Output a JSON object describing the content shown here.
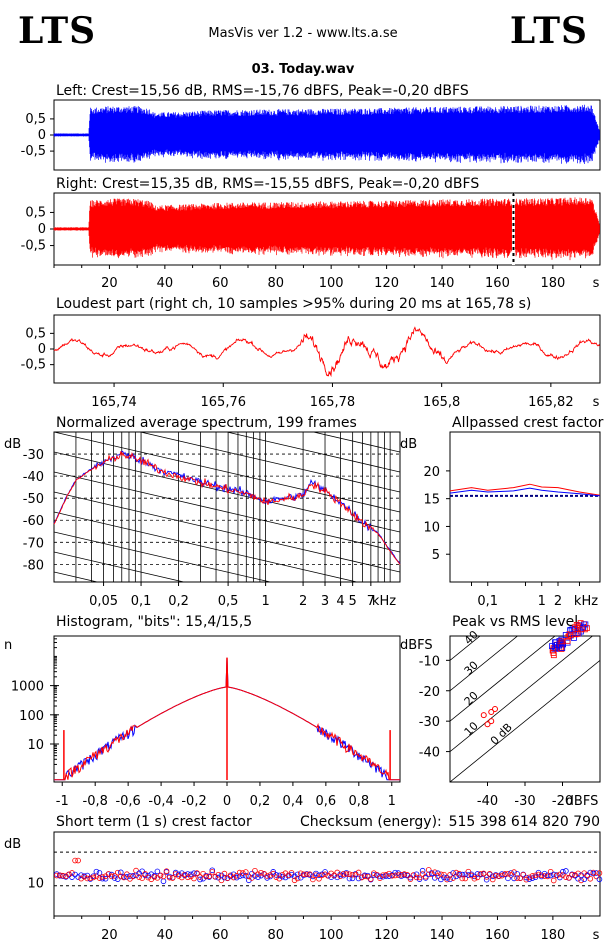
{
  "header": {
    "logo_left": "LTS",
    "logo_right": "LTS",
    "app_title": "MasVis ver 1.2 - www.lts.a.se",
    "file_title": "03. Today.wav"
  },
  "colors": {
    "left": "#0000ff",
    "right": "#ff0000",
    "grid": "#000000"
  },
  "chart_data": [
    {
      "id": "left",
      "type": "line",
      "title": "Left: Crest=15,56 dB, RMS=-15,76 dBFS, Peak=-0,20 dBFS",
      "yticks": [
        "0,5",
        "0",
        "-0,5"
      ],
      "ylim": [
        -1,
        1
      ],
      "xlim": [
        0,
        197
      ],
      "silence_end": 12.5,
      "envelope": [
        [
          0,
          0.05
        ],
        [
          12.5,
          0.05
        ],
        [
          13,
          0.85
        ],
        [
          20,
          0.9
        ],
        [
          30,
          0.9
        ],
        [
          35,
          0.82
        ],
        [
          36,
          0.7
        ],
        [
          45,
          0.72
        ],
        [
          60,
          0.78
        ],
        [
          80,
          0.8
        ],
        [
          100,
          0.82
        ],
        [
          120,
          0.84
        ],
        [
          140,
          0.88
        ],
        [
          160,
          0.9
        ],
        [
          180,
          0.92
        ],
        [
          194,
          0.95
        ],
        [
          197,
          0.1
        ]
      ]
    },
    {
      "id": "right",
      "type": "line",
      "title": "Right: Crest=15,35 dB, RMS=-15,55 dBFS, Peak=-0,20 dBFS",
      "yticks": [
        "0,5",
        "0",
        "-0,5"
      ],
      "xticks": [
        "20",
        "40",
        "60",
        "80",
        "100",
        "120",
        "140",
        "160",
        "180",
        "s"
      ],
      "xtick_values": [
        20,
        40,
        60,
        80,
        100,
        120,
        140,
        160,
        180
      ],
      "xlim": [
        0,
        197
      ],
      "marker": 165.78
    },
    {
      "id": "loudest",
      "type": "line",
      "title": "Loudest part (right ch, 10 samples >95% during 20 ms at 165,78 s)",
      "yticks": [
        "0,5",
        "0",
        "-0,5"
      ],
      "xticks": [
        "165,74",
        "165,76",
        "165,78",
        "165,8",
        "165,82",
        "s"
      ],
      "xtick_values": [
        165.74,
        165.76,
        165.78,
        165.8,
        165.82
      ],
      "xlim": [
        165.729,
        165.829
      ]
    },
    {
      "id": "spectrum",
      "type": "line",
      "title": "Normalized average spectrum, 199 frames",
      "ylabel": "dB",
      "yticks": [
        "-30",
        "-40",
        "-50",
        "-60",
        "-70",
        "-80"
      ],
      "ytick_values": [
        -30,
        -40,
        -50,
        -60,
        -70,
        -80
      ],
      "ylim": [
        -88,
        -20
      ],
      "xticks": [
        "0,05",
        "0,1",
        "0,2",
        "0,5",
        "1",
        "2",
        "3",
        "4",
        "5",
        "7",
        "kHz"
      ],
      "xtick_values": [
        0.05,
        0.1,
        0.2,
        0.5,
        1,
        2,
        3,
        4,
        5,
        7
      ],
      "xlim": [
        0.02,
        12
      ],
      "series": [
        {
          "color": "#ff0000",
          "points": [
            [
              0.02,
              -62
            ],
            [
              0.025,
              -50
            ],
            [
              0.03,
              -42
            ],
            [
              0.04,
              -37
            ],
            [
              0.05,
              -34
            ],
            [
              0.07,
              -30
            ],
            [
              0.1,
              -33
            ],
            [
              0.15,
              -38
            ],
            [
              0.2,
              -40
            ],
            [
              0.3,
              -43
            ],
            [
              0.5,
              -46
            ],
            [
              0.8,
              -49
            ],
            [
              1,
              -52
            ],
            [
              1.5,
              -50
            ],
            [
              2,
              -49
            ],
            [
              2.3,
              -43
            ],
            [
              3,
              -47
            ],
            [
              4,
              -52
            ],
            [
              5,
              -57
            ],
            [
              6,
              -61
            ],
            [
              8,
              -66
            ],
            [
              10,
              -74
            ],
            [
              12,
              -80
            ]
          ]
        }
      ]
    },
    {
      "id": "allpass",
      "type": "line",
      "title": "Allpassed crest factor",
      "ylabel": "dB",
      "yticks": [
        "20",
        "15",
        "10",
        "5"
      ],
      "ytick_values": [
        20,
        15,
        10,
        5
      ],
      "ylim": [
        0,
        27
      ],
      "xticks": [
        "0,1",
        "1",
        "2",
        "kHz"
      ],
      "xtick_values": [
        0.1,
        1,
        2
      ],
      "xlim": [
        0.02,
        12
      ],
      "reference": 15.5,
      "series": [
        {
          "color": "#ff0000",
          "points": [
            [
              0.02,
              16.4
            ],
            [
              0.05,
              17
            ],
            [
              0.1,
              16.5
            ],
            [
              0.3,
              17
            ],
            [
              0.6,
              17.6
            ],
            [
              1,
              17.1
            ],
            [
              2,
              17
            ],
            [
              5,
              16.2
            ],
            [
              12,
              15.6
            ]
          ]
        },
        {
          "color": "#0000ff",
          "points": [
            [
              0.02,
              16
            ],
            [
              0.05,
              16.5
            ],
            [
              0.1,
              16.2
            ],
            [
              0.3,
              16.4
            ],
            [
              0.6,
              16.9
            ],
            [
              1,
              16.5
            ],
            [
              2,
              16.2
            ],
            [
              5,
              15.9
            ],
            [
              12,
              15.5
            ]
          ]
        }
      ]
    },
    {
      "id": "histogram",
      "type": "line",
      "title": "Histogram, \"bits\": 15,4/15,5",
      "ylabel": "n",
      "yticks": [
        "1000",
        "100",
        "10"
      ],
      "ytick_values": [
        1000,
        100,
        10
      ],
      "ylim": [
        0.5,
        50000
      ],
      "xticks": [
        "-1",
        "-0,8",
        "-0,6",
        "-0,4",
        "-0,2",
        "0",
        "0,2",
        "0,4",
        "0,6",
        "0,8",
        "1"
      ],
      "xtick_values": [
        -1,
        -0.8,
        -0.6,
        -0.4,
        -0.2,
        0,
        0.2,
        0.4,
        0.6,
        0.8,
        1
      ],
      "xlim": [
        -1.05,
        1.05
      ]
    },
    {
      "id": "peakrms",
      "type": "scatter",
      "title": "Peak vs RMS level",
      "ylabel": "dBFS",
      "yticks": [
        "-10",
        "-20",
        "-30",
        "-40"
      ],
      "ytick_values": [
        -10,
        -20,
        -30,
        -40
      ],
      "ylim": [
        -50,
        -2
      ],
      "xticks": [
        "-40",
        "-30",
        "-20",
        "dBFS"
      ],
      "xtick_values": [
        -40,
        -30,
        -20
      ],
      "xlim": [
        -50,
        -10
      ],
      "diagonal_labels": [
        "40",
        "30",
        "20",
        "10",
        "0 dB"
      ]
    },
    {
      "id": "crest",
      "type": "scatter",
      "title": "Short term (1 s) crest factor",
      "checksum_label": "Checksum (energy):",
      "checksum_value": "515 398 614 820 790",
      "ylabel": "dB",
      "yticks": [
        "10"
      ],
      "ytick_values": [
        10
      ],
      "ylim": [
        0,
        25
      ],
      "xticks": [
        "20",
        "40",
        "60",
        "80",
        "100",
        "120",
        "140",
        "160",
        "180",
        "s"
      ],
      "xtick_values": [
        20,
        40,
        60,
        80,
        100,
        120,
        140,
        160,
        180
      ],
      "xlim": [
        0,
        197
      ],
      "dashed": [
        9,
        19
      ]
    }
  ]
}
